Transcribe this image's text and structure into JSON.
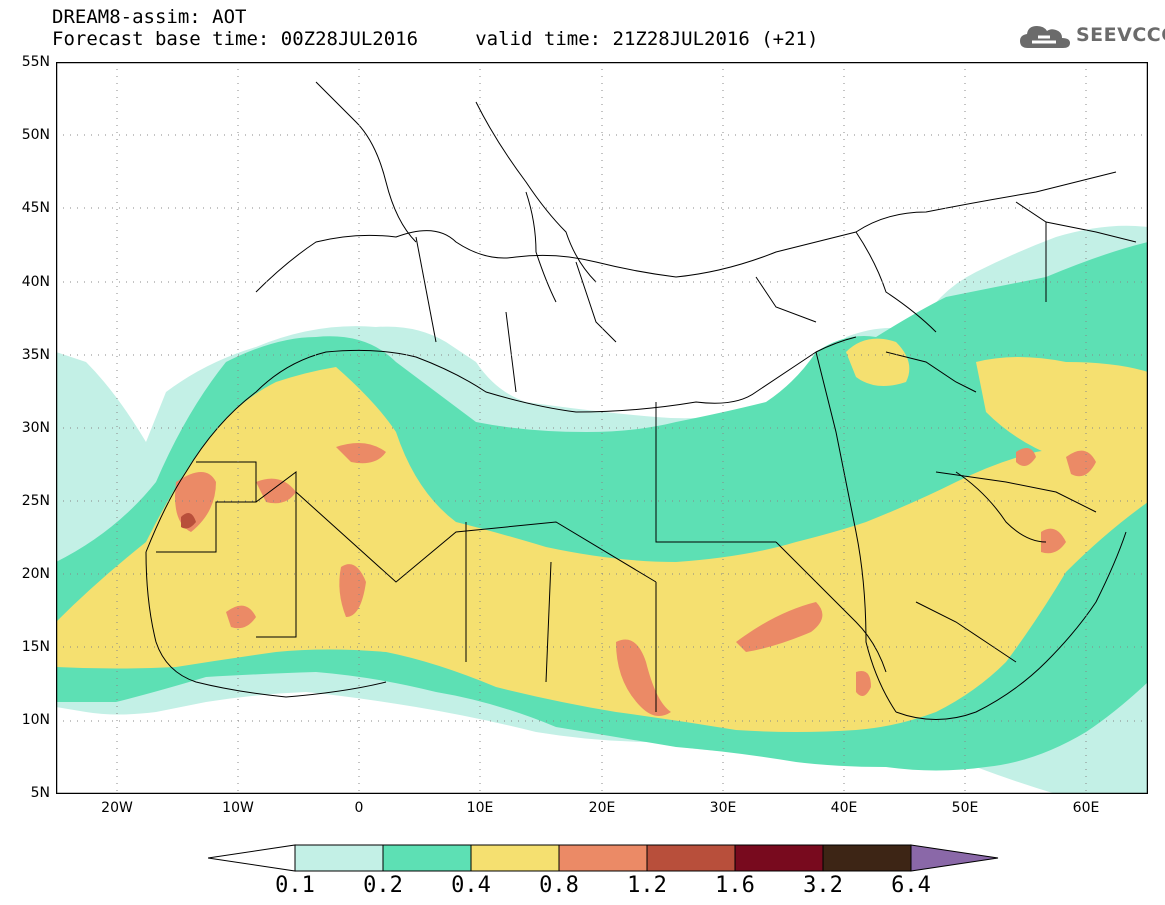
{
  "header": {
    "line1": "DREAM8-assim: AOT",
    "line2": "Forecast base time: 00Z28JUL2016     valid time: 21Z28JUL2016 (+21)"
  },
  "logo": {
    "text": "SEEVCCC",
    "icon": "cloud-icon"
  },
  "map": {
    "lat_labels": [
      "55N",
      "50N",
      "45N",
      "40N",
      "35N",
      "30N",
      "25N",
      "20N",
      "15N",
      "10N",
      "5N"
    ],
    "lon_labels": [
      "20W",
      "10W",
      "0",
      "10E",
      "20E",
      "30E",
      "40E",
      "50E",
      "60E"
    ]
  },
  "colorbar": {
    "labels": [
      "0.1",
      "0.2",
      "0.4",
      "0.8",
      "1.2",
      "1.6",
      "3.2",
      "6.4"
    ],
    "colors": [
      "#ffffff",
      "#c3f0e6",
      "#5de0b4",
      "#f5e070",
      "#eb8a66",
      "#b84f3b",
      "#780a1e",
      "#3d2515",
      "#8a68a8"
    ]
  },
  "palette": {
    "ocean": "#ffffff",
    "very_light": "#c3f0e6",
    "light": "#5de0b4",
    "medium": "#f5e070",
    "orange": "#eb8a66",
    "brown": "#b84f3b"
  }
}
